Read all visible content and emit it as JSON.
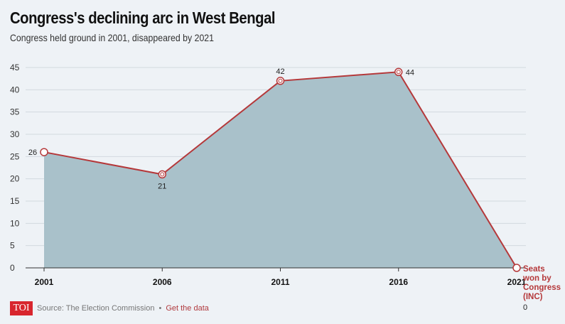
{
  "title": "Congress's declining arc in West Bengal",
  "subtitle": "Congress held ground in 2001, disappeared by 2021",
  "footer": {
    "logo": "TOI",
    "source": "Source: The Election Commission",
    "separator": "•",
    "link": "Get the data"
  },
  "colors": {
    "line": "#b5383a",
    "area": "#a9c1ca",
    "grid": "#d3d9df",
    "logo": "#d8262e"
  },
  "chart_data": {
    "type": "area",
    "title": "Congress's declining arc in West Bengal",
    "subtitle": "Congress held ground in 2001, disappeared by 2021",
    "x": [
      "2001",
      "2006",
      "2011",
      "2016",
      "2021"
    ],
    "series": [
      {
        "name": "Seats won by Congress (INC)",
        "values": [
          26,
          21,
          42,
          44,
          0
        ]
      }
    ],
    "ylim": [
      0,
      45
    ],
    "yticks": [
      0,
      5,
      10,
      15,
      20,
      25,
      30,
      35,
      40,
      45
    ],
    "grid": true,
    "series_label_lines": [
      "Seats",
      "won by",
      "Congress",
      "(INC)"
    ]
  }
}
